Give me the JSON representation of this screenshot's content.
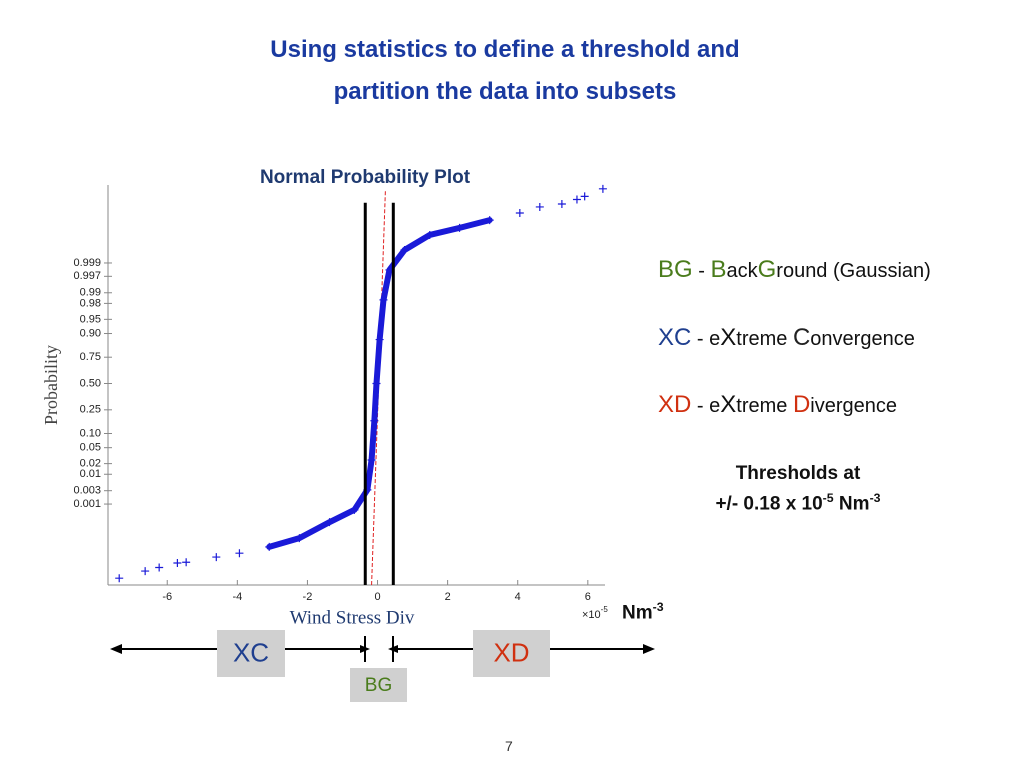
{
  "title": [
    "Using statistics to define a threshold and",
    "partition the data into subsets"
  ],
  "chart_data": {
    "type": "scatter",
    "title": "Normal Probability Plot",
    "xlabel": "Wind Stress Div",
    "ylabel": "Probability",
    "x_multiplier": {
      "base": "×10",
      "exp": "-5"
    },
    "yscale": "normal",
    "xlim": [
      -7.69,
      6.49
    ],
    "ylim": [
      1.2e-07,
      0.99999982
    ],
    "xticks": [
      -6,
      -4,
      -2,
      0,
      2,
      4,
      6
    ],
    "yticks": [
      0.001,
      0.003,
      0.01,
      0.02,
      0.05,
      {
        "value": 0.1,
        "label": "0.10"
      },
      0.25,
      {
        "value": 0.5,
        "label": "0.50"
      },
      0.75,
      {
        "value": 0.9,
        "label": "0.90"
      },
      0.95,
      0.98,
      0.99,
      0.997,
      0.999
    ],
    "series": [
      {
        "color": "#1a1ad8",
        "marker": "+",
        "x": [
          -7.37,
          -6.63,
          -6.23,
          -5.71,
          -5.46,
          -4.6,
          -3.94,
          4.06,
          4.63,
          5.26,
          5.69,
          5.91,
          6.43
        ],
        "values": [
          3e-07,
          7.6e-07,
          1.2e-06,
          2.1e-06,
          2.3e-06,
          4.3e-06,
          6.8e-06,
          0.9999938,
          0.999997,
          0.9999979,
          0.9999988,
          0.9999992,
          0.9999997
        ]
      },
      {
        "color": "#1a1ad8",
        "marker": "line",
        "x": [
          -3.09,
          -2.23,
          -1.37,
          -0.66,
          -0.29,
          -0.17,
          -0.09,
          -0.03,
          0.06,
          0.17,
          0.34,
          0.77,
          1.49,
          2.34,
          3.2
        ],
        "values": [
          1.4e-05,
          3.7e-05,
          0.00019,
          0.0006,
          0.0032,
          0.025,
          0.17,
          0.5,
          0.87,
          0.984,
          0.9982,
          0.99969,
          0.99993,
          0.999967,
          0.999986
        ]
      }
    ],
    "reference_line": {
      "color": "#e02020",
      "x": [
        -0.17,
        0.23
      ],
      "y": [
        1.2e-07,
        0.99999982
      ]
    },
    "threshold_lines": {
      "color": "#000000",
      "x": [
        -0.35,
        0.45
      ],
      "y": [
        1.2e-07,
        0.9999982
      ]
    }
  },
  "definitions": [
    [
      {
        "text": "BG",
        "color": "#4a7c1c",
        "big": true
      },
      {
        "text": " - "
      },
      {
        "text": "B",
        "color": "#4a7c1c",
        "big": true
      },
      {
        "text": "ack"
      },
      {
        "text": "G",
        "color": "#4a7c1c",
        "big": true
      },
      {
        "text": "round (Gaussian)"
      }
    ],
    [
      {
        "text": "XC",
        "color": "#1f3f8f",
        "big": true
      },
      {
        "text": " - e"
      },
      {
        "text": "X",
        "big": true
      },
      {
        "text": "treme "
      },
      {
        "text": "C",
        "color": "#222222",
        "big": true
      },
      {
        "text": "onvergence"
      }
    ],
    [
      {
        "text": "XD",
        "color": "#d03010",
        "big": true
      },
      {
        "text": " - e"
      },
      {
        "text": "X",
        "big": true
      },
      {
        "text": "treme "
      },
      {
        "text": "D",
        "color": "#d03010",
        "big": true
      },
      {
        "text": "ivergence"
      }
    ]
  ],
  "threshold_note": {
    "line1": "Thresholds at",
    "line2": [
      {
        "text": "+/- 0.18 x 10"
      },
      {
        "text": "-5",
        "sup": true
      },
      {
        "text": " Nm"
      },
      {
        "text": "-3",
        "sup": true
      }
    ]
  },
  "unit": {
    "base": "Nm",
    "exp": "-3"
  },
  "regions": [
    {
      "label": "XC",
      "color": "#1f3f8f"
    },
    {
      "label": "XD",
      "color": "#d03010"
    },
    {
      "label": "BG",
      "color": "#4a7c1c"
    }
  ],
  "page_number": "7"
}
